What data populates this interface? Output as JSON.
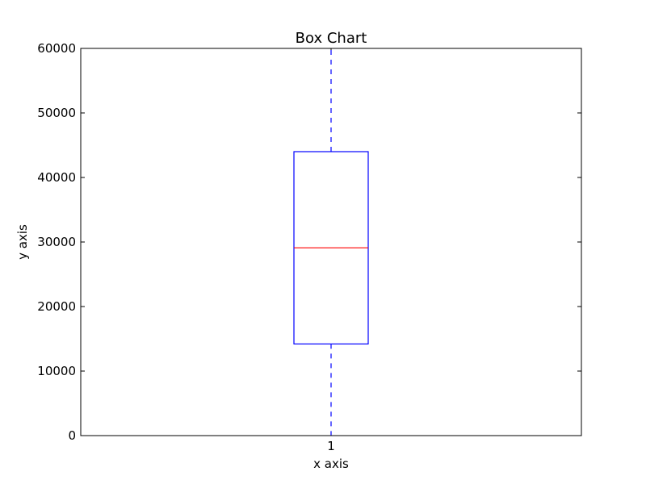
{
  "chart_data": {
    "type": "box",
    "title": "Box Chart",
    "xlabel": "x axis",
    "ylabel": "y axis",
    "categories": [
      "1"
    ],
    "ylim": [
      0,
      60000
    ],
    "yticks": [
      0,
      10000,
      20000,
      30000,
      40000,
      50000,
      60000
    ],
    "ytick_labels": [
      "0",
      "10000",
      "20000",
      "30000",
      "40000",
      "50000",
      "60000"
    ],
    "grid": false,
    "boxes": [
      {
        "category": "1",
        "whisker_low": 0,
        "q1": 14200,
        "median": 29100,
        "q3": 44000,
        "whisker_high": 60000
      }
    ],
    "colors": {
      "box": "#0000ff",
      "median": "#ff0000",
      "whisker": "#0000ff",
      "axes": "#000000"
    }
  }
}
